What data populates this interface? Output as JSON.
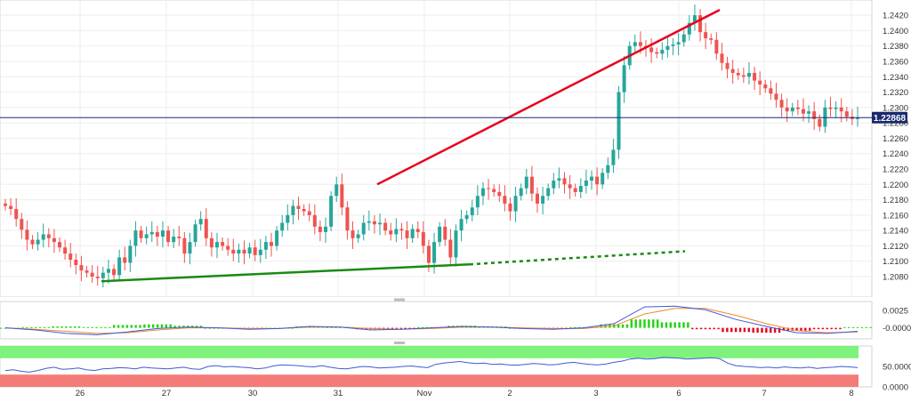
{
  "colors": {
    "up": "#26a69a",
    "down": "#ef5350",
    "price_line": "#1a2a6c",
    "price_tag_bg": "#1a2a6c",
    "resistance": "#e8001c",
    "support": "#1a8a12",
    "macd_line": "#3d5bd9",
    "signal_line": "#f5882a",
    "hist_pos": "#22d311",
    "hist_neg": "#e8001c",
    "rsi_line": "#3d5bd9",
    "rsi_overbought": "#7ef27a",
    "rsi_oversold": "#f47b78",
    "grid": "#eeeeee",
    "panel_bg": "#f7f7f7"
  },
  "chart_data": [
    {
      "type": "candlestick",
      "name": "price",
      "ylim": [
        1.2065,
        1.243
      ],
      "y_ticks": [
        "1.2420",
        "1.2400",
        "1.2380",
        "1.2360",
        "1.2340",
        "1.2320",
        "1.2300",
        "1.2280",
        "1.2260",
        "1.2240",
        "1.2220",
        "1.2200",
        "1.2180",
        "1.2160",
        "1.2140",
        "1.2120",
        "1.2100",
        "1.2080"
      ],
      "x_labels": [
        "26",
        "27",
        "30",
        "31",
        "Nov",
        "2",
        "3",
        "6",
        "7",
        "8"
      ],
      "current_price": 1.22868,
      "current_price_label": "1.22868",
      "start_open": 1.2175,
      "closes": [
        1.2172,
        1.2168,
        1.2155,
        1.2141,
        1.2128,
        1.2122,
        1.2128,
        1.2135,
        1.213,
        1.2125,
        1.2118,
        1.211,
        1.2102,
        1.2095,
        1.2088,
        1.2085,
        1.208,
        1.2078,
        1.2085,
        1.209,
        1.2082,
        1.2105,
        1.2098,
        1.212,
        1.214,
        1.213,
        1.2135,
        1.2138,
        1.2132,
        1.214,
        1.2125,
        1.2132,
        1.213,
        1.211,
        1.2125,
        1.2148,
        1.2155,
        1.213,
        1.2118,
        1.2125,
        1.212,
        1.2115,
        1.211,
        1.2115,
        1.211,
        1.2118,
        1.2108,
        1.2115,
        1.2125,
        1.212,
        1.214,
        1.215,
        1.216,
        1.2172,
        1.2168,
        1.2165,
        1.216,
        1.2145,
        1.2138,
        1.2145,
        1.2185,
        1.22,
        1.217,
        1.214,
        1.213,
        1.2135,
        1.215,
        1.2152,
        1.2148,
        1.215,
        1.214,
        1.2135,
        1.2142,
        1.214,
        1.213,
        1.2142,
        1.2138,
        1.212,
        1.2098,
        1.2125,
        1.2145,
        1.2128,
        1.2105,
        1.214,
        1.2155,
        1.216,
        1.217,
        1.2185,
        1.2195,
        1.2194,
        1.219,
        1.2185,
        1.2175,
        1.2165,
        1.2185,
        1.2195,
        1.221,
        1.2188,
        1.2175,
        1.2185,
        1.2195,
        1.2205,
        1.2208,
        1.22,
        1.2195,
        1.219,
        1.2198,
        1.2205,
        1.221,
        1.22,
        1.2215,
        1.2225,
        1.2245,
        1.232,
        1.2355,
        1.238,
        1.2385,
        1.238,
        1.2378,
        1.2372,
        1.237,
        1.2375,
        1.238,
        1.2382,
        1.2385,
        1.2395,
        1.241,
        1.242,
        1.2398,
        1.239,
        1.2388,
        1.237,
        1.2358,
        1.235,
        1.2345,
        1.2342,
        1.234,
        1.2345,
        1.2335,
        1.233,
        1.2325,
        1.2318,
        1.231,
        1.23,
        1.2295,
        1.23,
        1.2298,
        1.2292,
        1.2295,
        1.2285,
        1.2275,
        1.23,
        1.2298,
        1.23,
        1.2295,
        1.2288,
        1.2285,
        1.2287
      ],
      "resistance_line": {
        "from": [
          1.22
        ],
        "to": [
          1.2427
        ]
      },
      "support_line": {
        "from": [
          1.2074
        ],
        "to": [
          1.2096
        ],
        "extension_end": [
          1.2113
        ]
      }
    },
    {
      "type": "macd",
      "name": "macd",
      "ylim": [
        -0.0012,
        0.0034
      ],
      "y_ticks": [
        "0.0025",
        "-0.0000"
      ],
      "macd": [
        0.0,
        -0.0003,
        -0.0008,
        -0.001,
        -0.0006,
        -0.0001,
        0.0001,
        0.0,
        -0.0002,
        -0.0001,
        0.0002,
        0.0001,
        -0.0003,
        -0.0002,
        0.0,
        0.0002,
        0.0001,
        -0.0001,
        -0.0002,
        0.0,
        0.0006,
        0.003,
        0.0031,
        0.0026,
        0.0012,
        0.0002,
        -0.0007,
        -0.0008,
        -0.0005
      ],
      "signal": [
        0.0,
        -0.0002,
        -0.0005,
        -0.0008,
        -0.0007,
        -0.0003,
        0.0,
        0.0,
        -0.0001,
        -0.0001,
        0.0001,
        0.0001,
        -0.0001,
        -0.0002,
        -0.0001,
        0.0001,
        0.0001,
        0.0,
        -0.0001,
        -0.0001,
        0.0003,
        0.002,
        0.0028,
        0.0028,
        0.0018,
        0.0006,
        -0.0004,
        -0.0007,
        -0.0006
      ],
      "histogram": [
        0.0,
        0.0001,
        0.0002,
        0.0001,
        0.0004,
        0.0005,
        0.0003,
        0.0,
        -0.0001,
        0.0,
        0.0002,
        0.0001,
        -0.0002,
        -0.0001,
        0.0001,
        0.0003,
        0.0002,
        0.0,
        -0.0002,
        0.0001,
        0.0005,
        0.0012,
        0.0008,
        -0.0002,
        -0.0006,
        -0.0007,
        -0.0004,
        -0.0002,
        0.0001
      ]
    },
    {
      "type": "rsi",
      "name": "rsi",
      "ylim": [
        0,
        100
      ],
      "y_ticks": [
        "50.0000",
        "0.0000"
      ],
      "bands": {
        "overbought": [
          70,
          100
        ],
        "oversold": [
          0,
          30
        ]
      },
      "values": [
        40,
        42,
        38,
        36,
        40,
        45,
        48,
        43,
        44,
        46,
        42,
        40,
        44,
        45,
        47,
        46,
        44,
        48,
        46,
        45,
        44,
        46,
        48,
        44,
        43,
        50,
        52,
        49,
        50,
        48,
        47,
        44,
        46,
        51,
        54,
        53,
        52,
        50,
        49,
        52,
        48,
        45,
        44,
        47,
        50,
        49,
        46,
        47,
        48,
        50,
        51,
        49,
        47,
        55,
        58,
        60,
        62,
        59,
        57,
        58,
        55,
        56,
        54,
        53,
        55,
        57,
        56,
        54,
        55,
        58,
        60,
        57,
        55,
        54,
        56,
        60,
        63,
        68,
        70,
        68,
        69,
        72,
        71,
        70,
        68,
        69,
        70,
        71,
        69,
        58,
        52,
        50,
        49,
        47,
        48,
        46,
        49,
        47,
        46,
        48,
        45,
        47,
        48,
        50,
        49,
        47
      ]
    }
  ]
}
